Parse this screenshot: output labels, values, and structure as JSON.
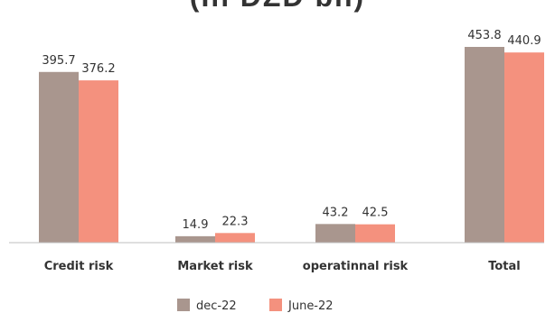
{
  "page": {
    "title_fragment": "(In DZD bn)"
  },
  "chart_data": {
    "type": "bar",
    "categories": [
      "Credit risk",
      "Market risk",
      "operatinnal risk",
      "Total"
    ],
    "series": [
      {
        "name": "dec-22",
        "values": [
          395.7,
          14.9,
          43.2,
          453.8
        ],
        "labels": [
          "395.7",
          "14.9",
          "43.2",
          "453.8"
        ],
        "color": "#a9968e"
      },
      {
        "name": "June-22",
        "values": [
          376.2,
          22.3,
          42.5,
          440.9
        ],
        "labels": [
          "376.2",
          "22.3",
          "42.5",
          "440.9"
        ],
        "color": "#f4917e"
      }
    ],
    "ylim": [
      0,
      500
    ],
    "grid": false,
    "legend": "bottom",
    "axis_color": "#bfbfbf"
  }
}
